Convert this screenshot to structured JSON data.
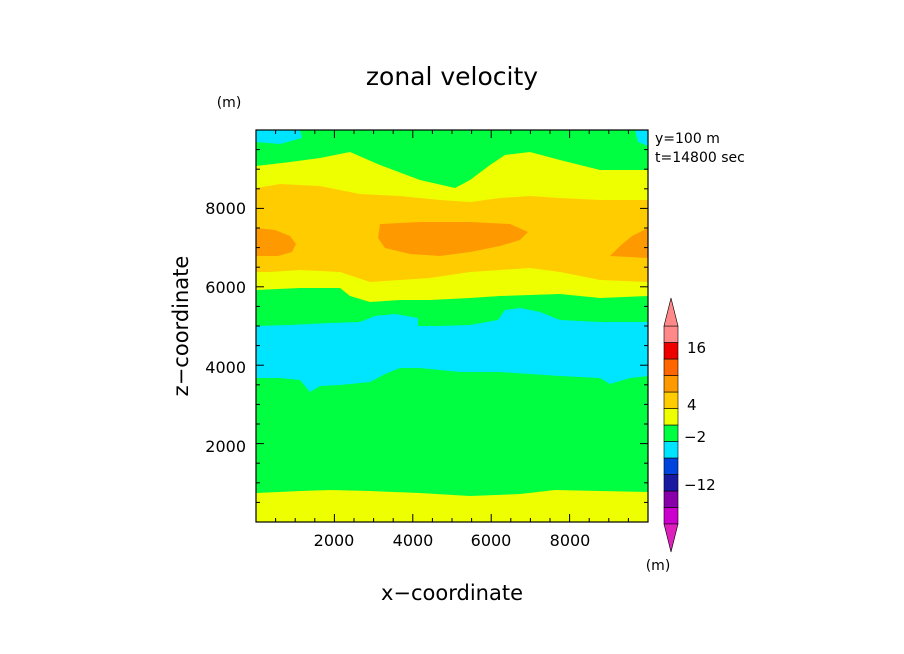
{
  "chart_data": {
    "type": "heatmap",
    "title": "zonal velocity",
    "xlabel": "x−coordinate",
    "ylabel": "z−coordinate",
    "y_unit": "(m)",
    "colorbar_unit": "(m)",
    "annotations": [
      "y=100 m",
      "t=14800 sec"
    ],
    "xlim": [
      0,
      10000
    ],
    "ylim": [
      0,
      10000
    ],
    "xticks": [
      2000,
      4000,
      6000,
      8000
    ],
    "yticks": [
      2000,
      4000,
      6000,
      8000
    ],
    "colorbar": {
      "colors": [
        "#cc00cc",
        "#8800aa",
        "#1a1aa0",
        "#0044dd",
        "#00e5ff",
        "#00ff40",
        "#eeff00",
        "#ffcc00",
        "#ff9900",
        "#ff6600",
        "#ee0000",
        "#ff8888"
      ],
      "labels": [
        {
          "text": "16",
          "between": 10
        },
        {
          "text": "4",
          "between": 7
        },
        {
          "text": "−2",
          "between": 5
        },
        {
          "text": "−12",
          "between": 2
        }
      ],
      "extend": "both"
    },
    "bands": [
      {
        "level": "yellow",
        "color": "#eeff00",
        "description": "near-surface band 0-800 m"
      },
      {
        "level": "green",
        "color": "#00ff40",
        "description": "800-3800 m"
      },
      {
        "level": "cyan",
        "color": "#00e5ff",
        "description": "3800-5000 m"
      },
      {
        "level": "green",
        "color": "#00ff40",
        "description": "5000-6100 m"
      },
      {
        "level": "yellow",
        "color": "#eeff00",
        "description": "6100-6400 m and 8500-9000 m"
      },
      {
        "level": "orange-light",
        "color": "#ffcc00",
        "description": "6400-8500 m"
      },
      {
        "level": "orange",
        "color": "#ff9900",
        "description": "core near 7000-7500 m"
      },
      {
        "level": "green",
        "color": "#00ff40",
        "description": "9000-9800 m"
      },
      {
        "level": "cyan",
        "color": "#00e5ff",
        "description": "top corners"
      }
    ]
  }
}
